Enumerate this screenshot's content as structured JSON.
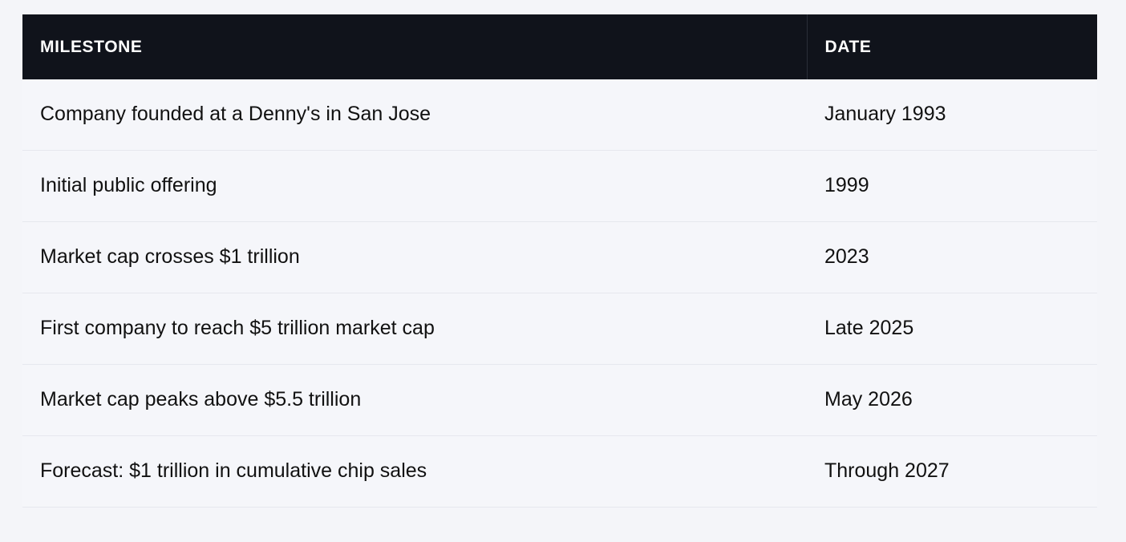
{
  "table": {
    "headers": {
      "milestone": "MILESTONE",
      "date": "DATE"
    },
    "rows": [
      {
        "milestone": "Company founded at a Denny's in San Jose",
        "date": "January 1993"
      },
      {
        "milestone": "Initial public offering",
        "date": "1999"
      },
      {
        "milestone": "Market cap crosses $1 trillion",
        "date": "2023"
      },
      {
        "milestone": "First company to reach $5 trillion market cap",
        "date": "Late 2025"
      },
      {
        "milestone": "Market cap peaks above $5.5 trillion",
        "date": "May 2026"
      },
      {
        "milestone": "Forecast: $1 trillion in cumulative chip sales",
        "date": "Through 2027"
      }
    ]
  },
  "colors": {
    "header_background": "#10131b",
    "header_text": "#ffffff",
    "row_background": "#f5f6fa",
    "row_divider": "#e6e8ee",
    "page_background": "#f4f5f9"
  }
}
